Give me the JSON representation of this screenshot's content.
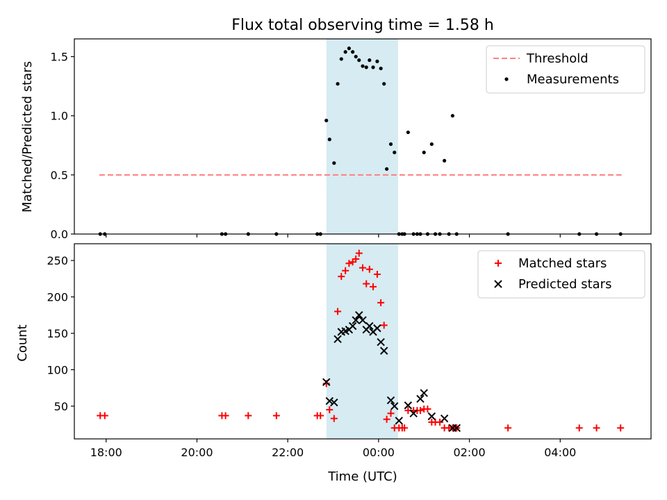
{
  "chart_data": [
    {
      "type": "scatter",
      "title": "Flux total observing time = 1.58 h",
      "xlabel": "",
      "ylabel": "Matched/Predicted stars",
      "xlim_hours": [
        17.3,
        30.0
      ],
      "ylim": [
        0,
        1.65
      ],
      "yticks": [
        0.0,
        0.5,
        1.0,
        1.5
      ],
      "yticklabels": [
        "0.0",
        "0.5",
        "1.0",
        "1.5"
      ],
      "shaded_span_hours": [
        22.85,
        24.43
      ],
      "threshold": {
        "label": "Threshold",
        "y": 0.5,
        "x_range_hours": [
          17.85,
          29.35
        ],
        "color": "#ff7f7f"
      },
      "legend": {
        "placement": "top-right",
        "entries": [
          "Threshold",
          "Measurements"
        ]
      },
      "series": [
        {
          "name": "Measurements",
          "color": "#000000",
          "x_hours": [
            17.87,
            17.97,
            20.55,
            20.63,
            21.13,
            21.75,
            22.65,
            22.72,
            22.85,
            22.92,
            23.02,
            23.1,
            23.18,
            23.27,
            23.35,
            23.43,
            23.5,
            23.57,
            23.65,
            23.73,
            23.8,
            23.88,
            23.97,
            24.05,
            24.12,
            24.18,
            24.27,
            24.35,
            24.45,
            24.52,
            24.57,
            24.65,
            24.77,
            24.85,
            24.92,
            25.0,
            25.08,
            25.17,
            25.25,
            25.35,
            25.45,
            25.55,
            25.63,
            25.72,
            26.85,
            28.42,
            28.8,
            29.33
          ],
          "y": [
            0,
            0,
            0,
            0,
            0,
            0,
            0,
            0,
            0.96,
            0.8,
            0.6,
            1.27,
            1.48,
            1.54,
            1.57,
            1.54,
            1.5,
            1.47,
            1.42,
            1.41,
            1.47,
            1.41,
            1.46,
            1.4,
            1.27,
            0.55,
            0.76,
            0.69,
            0,
            0,
            0,
            0.86,
            0,
            0,
            0,
            0.69,
            0,
            0.76,
            0,
            0,
            0.62,
            0,
            1.0,
            0,
            0,
            0,
            0,
            0
          ]
        }
      ]
    },
    {
      "type": "scatter",
      "title": "",
      "xlabel": "Time (UTC)",
      "ylabel": "Count",
      "xlim_hours": [
        17.3,
        30.0
      ],
      "ylim": [
        5,
        273
      ],
      "yticks": [
        50,
        100,
        150,
        200,
        250
      ],
      "yticklabels": [
        "50",
        "100",
        "150",
        "200",
        "250"
      ],
      "xticks_hours": [
        18,
        20,
        22,
        24,
        26,
        28
      ],
      "xticklabels": [
        "18:00",
        "20:00",
        "22:00",
        "00:00",
        "02:00",
        "04:00"
      ],
      "shaded_span_hours": [
        22.85,
        24.43
      ],
      "legend": {
        "placement": "top-right",
        "entries": [
          "Matched stars",
          "Predicted stars"
        ]
      },
      "series": [
        {
          "name": "Matched stars",
          "marker": "+",
          "color": "#ff0000",
          "x_hours": [
            17.87,
            17.97,
            20.55,
            20.63,
            21.13,
            21.75,
            22.65,
            22.72,
            22.85,
            22.92,
            23.02,
            23.1,
            23.18,
            23.27,
            23.35,
            23.43,
            23.5,
            23.57,
            23.65,
            23.73,
            23.8,
            23.88,
            23.97,
            24.05,
            24.12,
            24.18,
            24.27,
            24.35,
            24.45,
            24.52,
            24.57,
            24.65,
            24.77,
            24.85,
            24.92,
            25.0,
            25.08,
            25.17,
            25.25,
            25.35,
            25.45,
            25.55,
            25.63,
            25.72,
            26.85,
            28.42,
            28.8,
            29.33
          ],
          "y": [
            37,
            37,
            37,
            37,
            37,
            37,
            37,
            37,
            81,
            45,
            33,
            180,
            228,
            236,
            246,
            248,
            252,
            260,
            240,
            218,
            238,
            214,
            231,
            192,
            161,
            32,
            40,
            20,
            20,
            20,
            20,
            44,
            44,
            44,
            44,
            46,
            46,
            28,
            28,
            28,
            20,
            20,
            20,
            20,
            20,
            20,
            20,
            20
          ]
        },
        {
          "name": "Predicted stars",
          "marker": "x",
          "color": "#000000",
          "x_hours": [
            22.85,
            22.92,
            23.02,
            23.1,
            23.18,
            23.27,
            23.35,
            23.43,
            23.5,
            23.57,
            23.65,
            23.73,
            23.8,
            23.88,
            23.97,
            24.05,
            24.12,
            24.27,
            24.35,
            24.45,
            24.65,
            24.77,
            24.92,
            25.0,
            25.17,
            25.45,
            25.63,
            25.72
          ],
          "y": [
            83,
            57,
            55,
            142,
            152,
            153,
            155,
            160,
            168,
            175,
            168,
            155,
            160,
            152,
            157,
            138,
            126,
            58,
            50,
            30,
            51,
            40,
            60,
            68,
            36,
            33,
            20,
            20
          ]
        }
      ]
    }
  ]
}
